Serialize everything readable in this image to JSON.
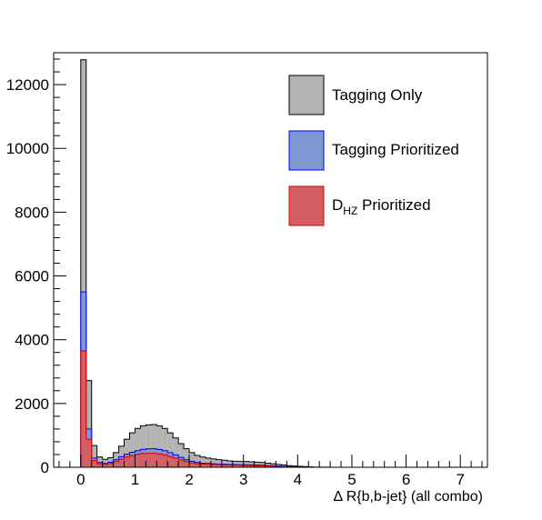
{
  "chart_data": {
    "type": "histogram",
    "title": "",
    "xlabel": "Δ R{b,b-jet}  (all combo)",
    "ylabel": "",
    "xlim": [
      -0.5,
      7.5
    ],
    "ylim": [
      0,
      13000
    ],
    "x_ticks": [
      "0",
      "1",
      "2",
      "3",
      "4",
      "5",
      "6",
      "7"
    ],
    "y_ticks": [
      "0",
      "2000",
      "4000",
      "6000",
      "8000",
      "10000",
      "12000"
    ],
    "bin_start": 0,
    "bin_width": 0.1,
    "grid": false,
    "legend_position": "top-right",
    "series": [
      {
        "name": "Tagging Only",
        "color": "#b3b3b3",
        "values": [
          12780,
          2720,
          680,
          320,
          250,
          300,
          460,
          660,
          880,
          1080,
          1220,
          1300,
          1330,
          1340,
          1300,
          1220,
          1080,
          920,
          740,
          580,
          460,
          370,
          320,
          290,
          260,
          240,
          220,
          200,
          190,
          180,
          180,
          170,
          160,
          150,
          130,
          110,
          90,
          70,
          50,
          40,
          30,
          20,
          10,
          5,
          5,
          5,
          0,
          0
        ]
      },
      {
        "name": "Tagging Prioritized",
        "color": "#7d99d1",
        "values": [
          5500,
          1200,
          290,
          150,
          120,
          160,
          240,
          330,
          410,
          470,
          520,
          560,
          580,
          580,
          560,
          520,
          460,
          390,
          310,
          240,
          190,
          150,
          130,
          120,
          110,
          100,
          95,
          90,
          85,
          80,
          80,
          75,
          70,
          65,
          55,
          45,
          35,
          25,
          18,
          12,
          8,
          5,
          3,
          0,
          0,
          0,
          0,
          0
        ]
      },
      {
        "name": "D_HZ Prioritized",
        "color": "#d35f63",
        "values": [
          3650,
          880,
          210,
          110,
          90,
          120,
          180,
          250,
          320,
          370,
          410,
          430,
          440,
          440,
          420,
          390,
          340,
          290,
          230,
          180,
          140,
          110,
          100,
          95,
          90,
          85,
          80,
          75,
          70,
          65,
          60,
          55,
          50,
          45,
          40,
          30,
          22,
          15,
          10,
          6,
          4,
          2,
          1,
          0,
          0,
          0,
          0,
          0
        ]
      }
    ]
  },
  "legend": {
    "items": [
      {
        "label": "Tagging Only",
        "color": "#b3b3b3",
        "edge": "#000000"
      },
      {
        "label": "Tagging Prioritized",
        "color": "#7d99d1",
        "edge": "#0000ee"
      },
      {
        "label_main": "D",
        "label_sub": "HZ",
        "label_rest": " Prioritized",
        "color": "#d35f63",
        "edge": "#d00000"
      }
    ]
  },
  "line_colors": {
    "tagging_only": "#000000",
    "tagging_prioritized": "#0000ee",
    "dhz_prioritized": "#d00000"
  }
}
